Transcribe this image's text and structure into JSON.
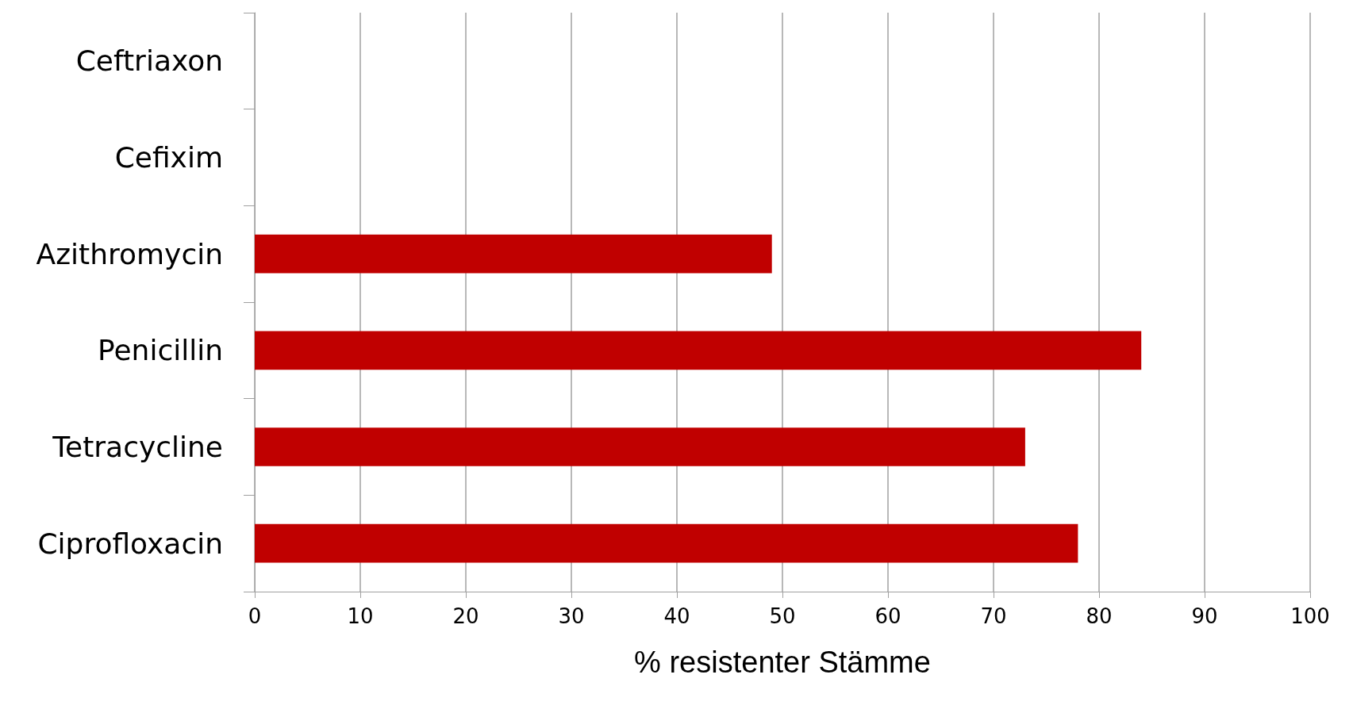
{
  "chart_data": {
    "type": "bar",
    "orientation": "horizontal",
    "xlabel": "% resistenter Stämme",
    "categories": [
      "Ceftriaxon",
      "Cefixim",
      "Azithromycin",
      "Penicillin",
      "Tetracycline",
      "Ciprofloxacin"
    ],
    "values": [
      0,
      0,
      49,
      84,
      73,
      78
    ],
    "color": "#c00000",
    "xlim": [
      0,
      100
    ],
    "xticks": [
      0,
      10,
      20,
      30,
      40,
      50,
      60,
      70,
      80,
      90,
      100
    ],
    "grid": "x"
  }
}
